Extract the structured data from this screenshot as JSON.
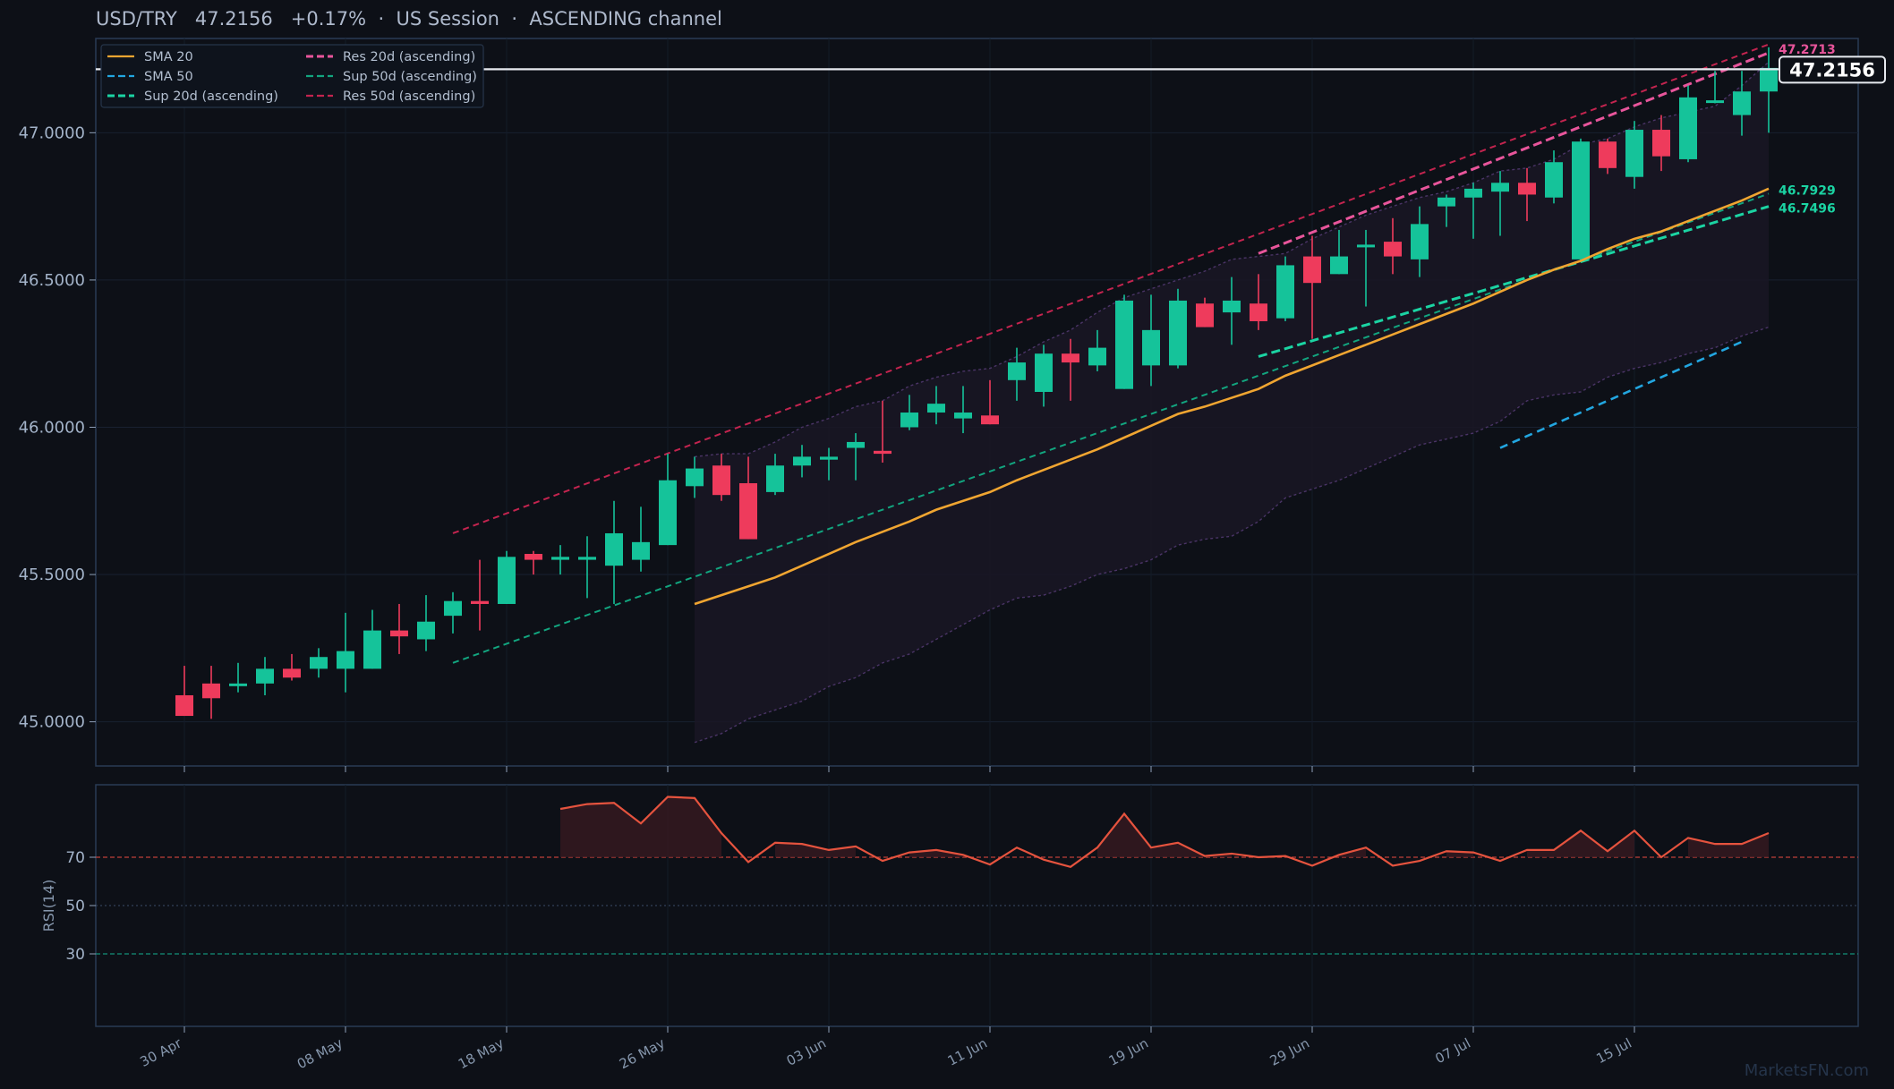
{
  "header": {
    "symbol": "USD/TRY",
    "price": "47.2156",
    "change": "+0.17%",
    "session": "US Session",
    "channel": "ASCENDING channel",
    "sep": "·"
  },
  "watermark": "MarketsFN.com",
  "colors": {
    "background": "#0d1017",
    "panel": "#0d1017",
    "border": "#2a3b55",
    "up": "#15c39a",
    "down": "#ee3b5c",
    "sma20": "#f0a531",
    "sma50": "#22a6e0",
    "sup20": "#1bd4a3",
    "sup50": "#12a57f",
    "res20": "#e8559b",
    "res50": "#c3244f",
    "rsi": "#e5533e",
    "band": "#4a3466"
  },
  "chart_data": [
    {
      "type": "candlestick",
      "title": "USD/TRY   47.2156   +0.17%  ·  US Session  ·  ASCENDING channel",
      "ylim": [
        44.85,
        47.32
      ],
      "yticks": [
        "45.0000",
        "45.5000",
        "46.0000",
        "46.5000",
        "47.0000"
      ],
      "ytick_values": [
        45.0,
        45.5,
        46.0,
        46.5,
        47.0
      ],
      "xtick_labels": [
        "30 Apr",
        "08 May",
        "18 May",
        "26 May",
        "03 Jun",
        "11 Jun",
        "19 Jun",
        "29 Jun",
        "07 Jul",
        "15 Jul"
      ],
      "xtick_index": [
        0,
        6,
        12,
        18,
        24,
        30,
        36,
        42,
        48,
        54
      ],
      "last_price_label": "47.2156",
      "last_price": 47.2156,
      "annotations": [
        "47.2713",
        "46.7929",
        "46.7496"
      ],
      "ohlc": [
        [
          45.09,
          45.19,
          45.02,
          45.02
        ],
        [
          45.13,
          45.19,
          45.01,
          45.08
        ],
        [
          45.13,
          45.2,
          45.1,
          45.13
        ],
        [
          45.13,
          45.22,
          45.09,
          45.18
        ],
        [
          45.18,
          45.23,
          45.14,
          45.15
        ],
        [
          45.18,
          45.25,
          45.15,
          45.22
        ],
        [
          45.18,
          45.37,
          45.1,
          45.24
        ],
        [
          45.18,
          45.38,
          45.18,
          45.31
        ],
        [
          45.31,
          45.4,
          45.23,
          45.29
        ],
        [
          45.28,
          45.43,
          45.24,
          45.34
        ],
        [
          45.36,
          45.44,
          45.3,
          45.41
        ],
        [
          45.41,
          45.55,
          45.31,
          45.4
        ],
        [
          45.4,
          45.58,
          45.4,
          45.56
        ],
        [
          45.57,
          45.58,
          45.5,
          45.55
        ],
        [
          45.55,
          45.6,
          45.5,
          45.56
        ],
        [
          45.55,
          45.63,
          45.42,
          45.56
        ],
        [
          45.53,
          45.75,
          45.4,
          45.64
        ],
        [
          45.55,
          45.73,
          45.51,
          45.61
        ],
        [
          45.6,
          45.91,
          45.6,
          45.82
        ],
        [
          45.8,
          45.9,
          45.76,
          45.86
        ],
        [
          45.87,
          45.91,
          45.75,
          45.77
        ],
        [
          45.81,
          45.9,
          45.62,
          45.62
        ],
        [
          45.78,
          45.91,
          45.77,
          45.87
        ],
        [
          45.87,
          45.94,
          45.83,
          45.9
        ],
        [
          45.89,
          45.93,
          45.82,
          45.9
        ],
        [
          45.93,
          45.98,
          45.82,
          45.95
        ],
        [
          45.92,
          46.09,
          45.88,
          45.91
        ],
        [
          46.0,
          46.11,
          45.99,
          46.05
        ],
        [
          46.05,
          46.14,
          46.01,
          46.08
        ],
        [
          46.03,
          46.14,
          45.98,
          46.05
        ],
        [
          46.04,
          46.16,
          46.01,
          46.01
        ],
        [
          46.16,
          46.27,
          46.09,
          46.22
        ],
        [
          46.12,
          46.28,
          46.07,
          46.25
        ],
        [
          46.25,
          46.3,
          46.09,
          46.22
        ],
        [
          46.21,
          46.33,
          46.19,
          46.27
        ],
        [
          46.13,
          46.45,
          46.13,
          46.43
        ],
        [
          46.21,
          46.45,
          46.14,
          46.33
        ],
        [
          46.21,
          46.47,
          46.2,
          46.43
        ],
        [
          46.42,
          46.44,
          46.34,
          46.34
        ],
        [
          46.39,
          46.51,
          46.28,
          46.43
        ],
        [
          46.42,
          46.52,
          46.33,
          46.36
        ],
        [
          46.37,
          46.58,
          46.36,
          46.55
        ],
        [
          46.58,
          46.65,
          46.3,
          46.49
        ],
        [
          46.52,
          46.67,
          46.52,
          46.58
        ],
        [
          46.62,
          46.67,
          46.41,
          46.62
        ],
        [
          46.63,
          46.71,
          46.52,
          46.58
        ],
        [
          46.57,
          46.75,
          46.51,
          46.69
        ],
        [
          46.75,
          46.79,
          46.68,
          46.78
        ],
        [
          46.78,
          46.83,
          46.64,
          46.81
        ],
        [
          46.8,
          46.87,
          46.65,
          46.83
        ],
        [
          46.83,
          46.88,
          46.7,
          46.79
        ],
        [
          46.78,
          46.94,
          46.76,
          46.9
        ],
        [
          46.57,
          46.98,
          46.56,
          46.97
        ],
        [
          46.97,
          46.98,
          46.86,
          46.88
        ],
        [
          46.85,
          47.04,
          46.81,
          47.01
        ],
        [
          47.01,
          47.06,
          46.87,
          46.92
        ],
        [
          46.91,
          47.16,
          46.9,
          47.12
        ],
        [
          47.11,
          47.21,
          47.1,
          47.11
        ],
        [
          47.06,
          47.21,
          46.99,
          47.14
        ],
        [
          47.14,
          47.29,
          47.0,
          47.22
        ]
      ],
      "series": [
        {
          "name": "SMA 20",
          "start_index": 19,
          "values": [
            45.4,
            45.43,
            45.46,
            45.49,
            45.53,
            45.57,
            45.61,
            45.645,
            45.68,
            45.72,
            45.75,
            45.78,
            45.82,
            45.855,
            45.89,
            45.925,
            45.965,
            46.005,
            46.045,
            46.07,
            46.1,
            46.13,
            46.175,
            46.21,
            46.245,
            46.28,
            46.315,
            46.35,
            46.385,
            46.42,
            46.46,
            46.5,
            46.535,
            46.565,
            46.605,
            46.64,
            46.665,
            46.7,
            46.735,
            46.77,
            46.81
          ]
        },
        {
          "name": "SMA 50",
          "start_index": 49,
          "values": [
            45.93,
            45.97,
            46.01,
            46.05,
            46.09,
            46.13,
            46.17,
            46.21,
            46.25,
            46.29
          ]
        },
        {
          "name": "Sup 20d (ascending)",
          "points": [
            [
              40,
              46.24
            ],
            [
              59,
              46.7496
            ]
          ]
        },
        {
          "name": "Sup 50d (ascending)",
          "points": [
            [
              10,
              45.2
            ],
            [
              59,
              46.7929
            ]
          ]
        },
        {
          "name": "Res 20d (ascending)",
          "points": [
            [
              40,
              46.59
            ],
            [
              59,
              47.2713
            ]
          ]
        },
        {
          "name": "Res 50d (ascending)",
          "points": [
            [
              10,
              45.64
            ],
            [
              59,
              47.3
            ]
          ]
        }
      ],
      "band": {
        "start_index": 19,
        "upper": [
          45.9,
          45.91,
          45.91,
          45.95,
          46.0,
          46.03,
          46.07,
          46.09,
          46.14,
          46.17,
          46.19,
          46.2,
          46.24,
          46.29,
          46.33,
          46.39,
          46.44,
          46.47,
          46.5,
          46.53,
          46.57,
          46.58,
          46.59,
          46.64,
          46.68,
          46.72,
          46.75,
          46.78,
          46.8,
          46.83,
          46.87,
          46.88,
          46.91,
          46.96,
          46.98,
          47.02,
          47.05,
          47.07,
          47.09,
          47.16,
          47.24
        ],
        "lower": [
          44.93,
          44.96,
          45.01,
          45.04,
          45.07,
          45.12,
          45.15,
          45.2,
          45.23,
          45.28,
          45.33,
          45.38,
          45.42,
          45.43,
          45.46,
          45.5,
          45.52,
          45.55,
          45.6,
          45.62,
          45.63,
          45.68,
          45.76,
          45.79,
          45.82,
          45.86,
          45.9,
          45.94,
          45.96,
          45.98,
          46.02,
          46.09,
          46.11,
          46.12,
          46.17,
          46.2,
          46.22,
          46.25,
          46.27,
          46.31,
          46.34
        ]
      },
      "legend": {
        "placement": "top-left",
        "items": [
          {
            "label": "SMA 20",
            "color": "#f0a531",
            "style": "solid"
          },
          {
            "label": "Res 20d (ascending)",
            "color": "#e8559b",
            "style": "dashed"
          },
          {
            "label": "SMA 50",
            "color": "#22a6e0",
            "style": "dashed"
          },
          {
            "label": "Sup 50d (ascending)",
            "color": "#12a57f",
            "style": "dashed"
          },
          {
            "label": "Sup 20d (ascending)",
            "color": "#1bd4a3",
            "style": "dashed"
          },
          {
            "label": "Res 50d (ascending)",
            "color": "#c3244f",
            "style": "dashed"
          }
        ]
      }
    },
    {
      "type": "line",
      "ylabel": "RSI(14)",
      "ylim": [
        0,
        100
      ],
      "yticks": [
        "30",
        "50",
        "70"
      ],
      "ytick_values": [
        30,
        50,
        70
      ],
      "reference_lines": [
        70,
        50,
        30
      ],
      "start_index": 14,
      "values": [
        90,
        92,
        92.5,
        84,
        95,
        94.5,
        80,
        68,
        76,
        75.5,
        73,
        74.5,
        68.5,
        72,
        73,
        71,
        67,
        74,
        69,
        66,
        74,
        88,
        74,
        76,
        70.5,
        71.5,
        70,
        70.5,
        66.5,
        71,
        74,
        66.5,
        68.5,
        72.5,
        72,
        68.5,
        73,
        73,
        81,
        72.5,
        81,
        70,
        78,
        75.5,
        75.5,
        80
      ]
    }
  ]
}
